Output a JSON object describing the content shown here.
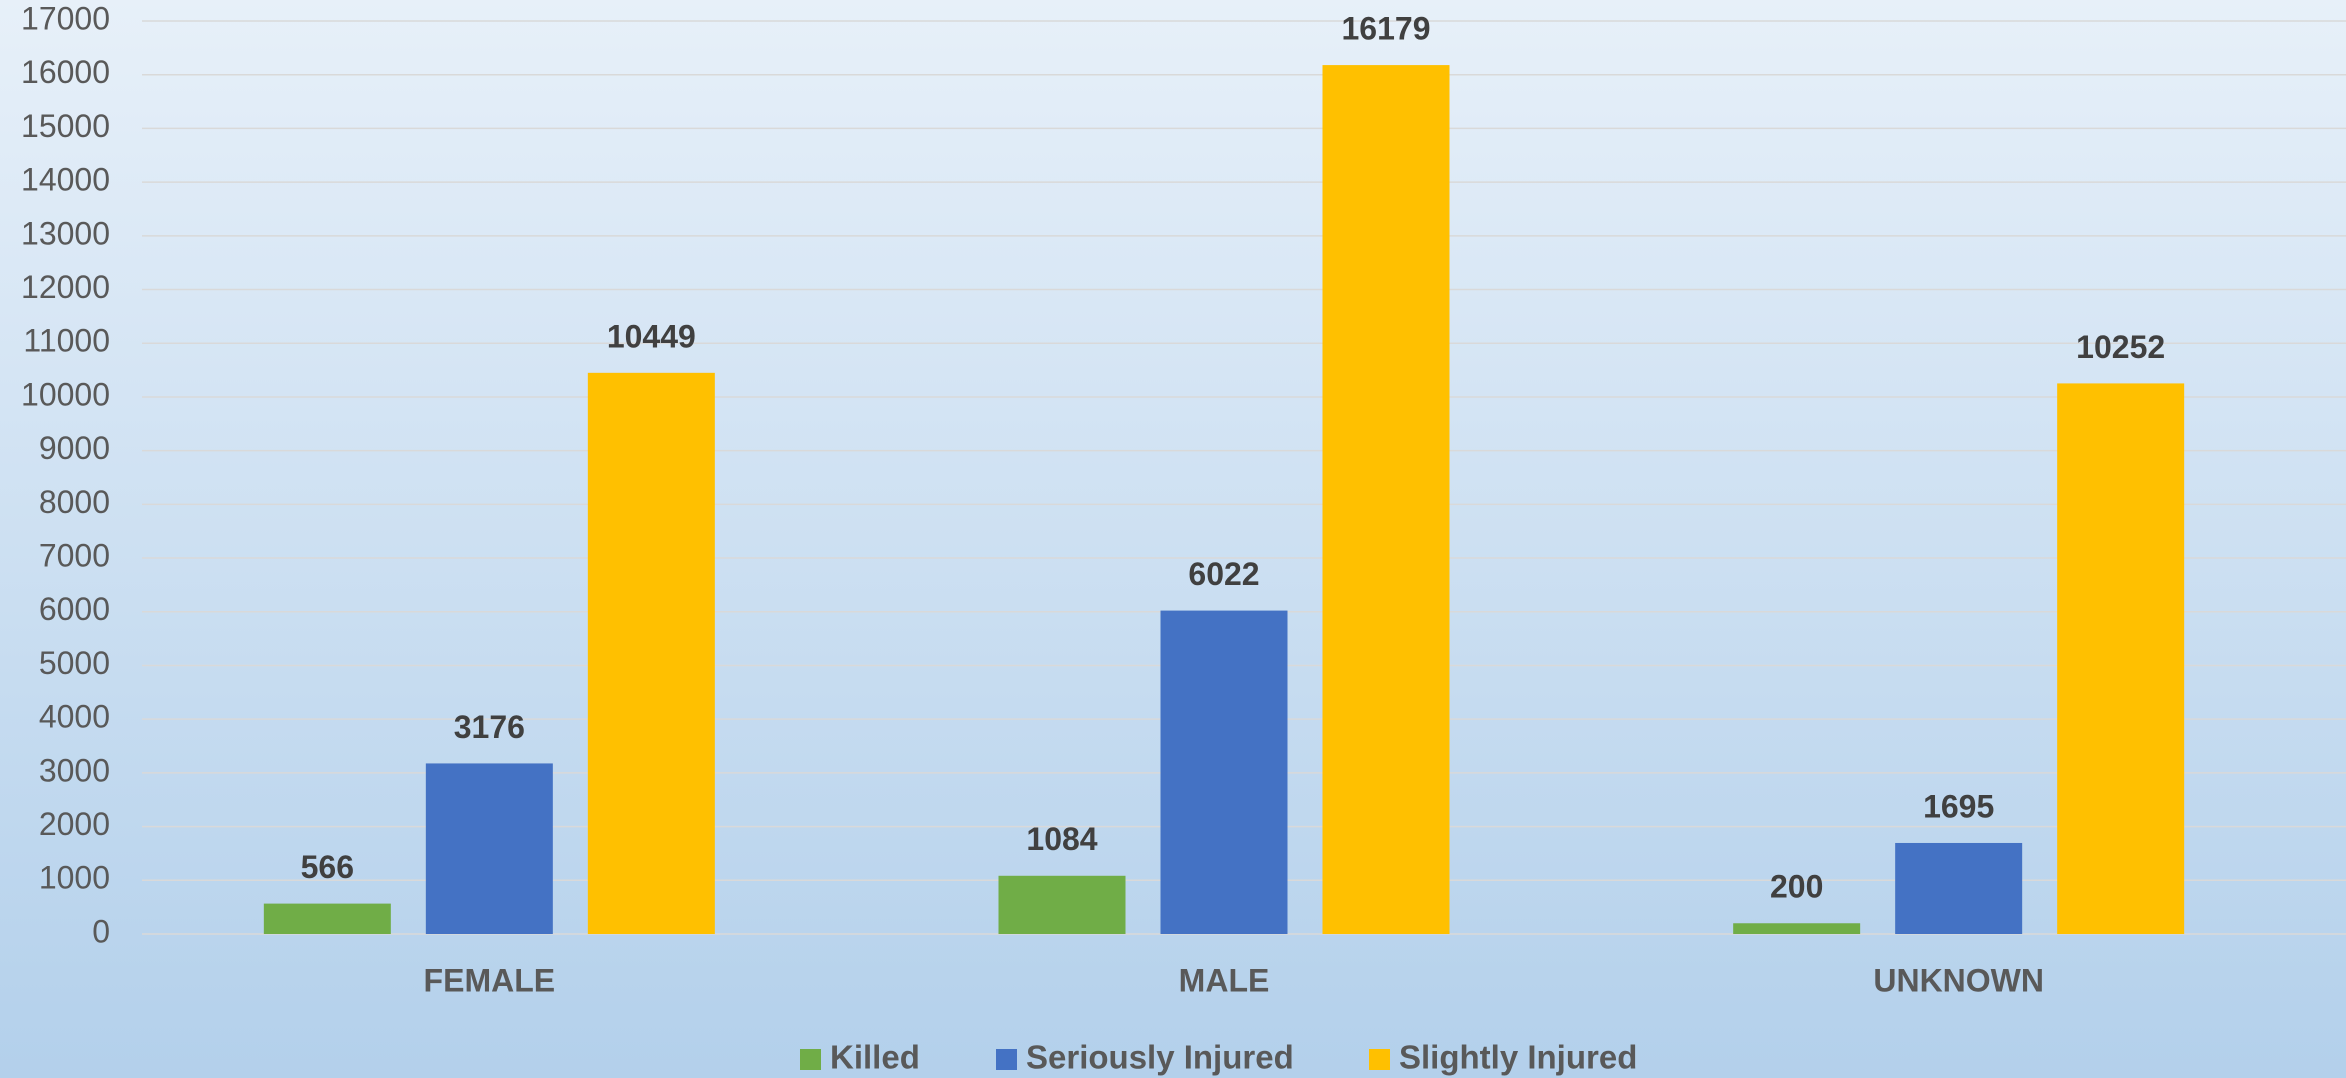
{
  "chart_data": {
    "type": "bar",
    "categories": [
      "FEMALE",
      "MALE",
      "UNKNOWN"
    ],
    "series": [
      {
        "name": "Killed",
        "color": "#70ad47",
        "values": [
          566,
          1084,
          200
        ]
      },
      {
        "name": "Seriously Injured",
        "color": "#4472c4",
        "values": [
          3176,
          6022,
          1695
        ]
      },
      {
        "name": "Slightly Injured",
        "color": "#ffc000",
        "values": [
          10449,
          16179,
          10252
        ]
      }
    ],
    "ylim": [
      0,
      17000
    ],
    "yticks": [
      0,
      1000,
      2000,
      3000,
      4000,
      5000,
      6000,
      7000,
      8000,
      9000,
      10000,
      11000,
      12000,
      13000,
      14000,
      15000,
      16000,
      17000
    ],
    "grid": true,
    "legend": "bottom"
  }
}
